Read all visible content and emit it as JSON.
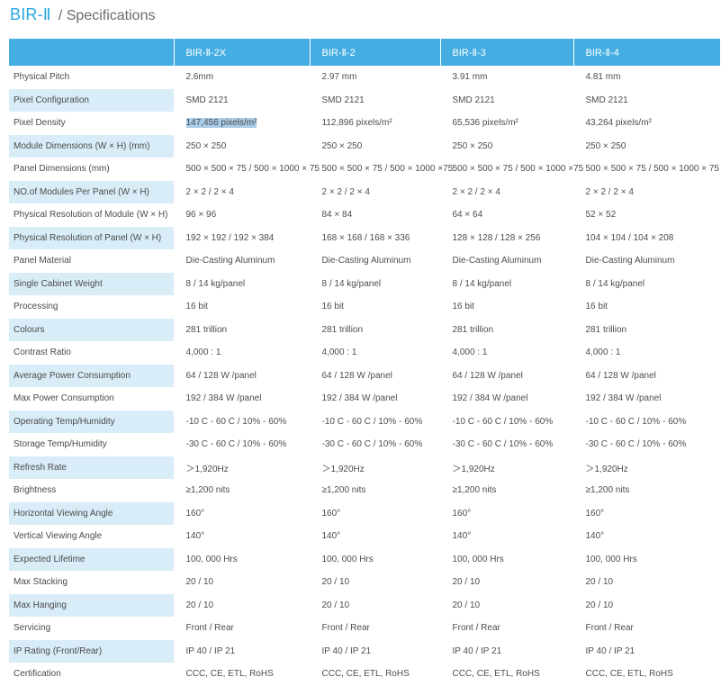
{
  "page": {
    "brand": "BIR-Ⅱ",
    "subtitle": "/ Specifications"
  },
  "colors": {
    "accent": "#29a7df",
    "header_bg": "#44aee2",
    "shaded_label_bg": "#d9edf8"
  },
  "table": {
    "headers": [
      "",
      "BIR-Ⅱ-2X",
      "BIR-Ⅱ-2",
      "BIR-Ⅱ-3",
      "BIR-Ⅱ-4"
    ],
    "rows": [
      {
        "label": "Physical Pitch",
        "values": [
          "2.6mm",
          "2.97  mm",
          "3.91 mm",
          "4.81 mm"
        ]
      },
      {
        "label": "Pixel Configuration",
        "values": [
          "SMD 2121",
          "SMD 2121",
          "SMD 2121",
          "SMD 2121"
        ]
      },
      {
        "label": "Pixel Density",
        "values": [
          "147,456 pixels/m²",
          "112,896  pixels/m²",
          "65,536 pixels/m²",
          "43,264 pixels/m²"
        ]
      },
      {
        "label": "Module Dimensions (W × H) (mm)",
        "values": [
          "250 × 250",
          "250 × 250",
          "250 × 250",
          "250 × 250"
        ]
      },
      {
        "label": "Panel Dimensions (mm)",
        "values": [
          "500 × 500 × 75 / 500 × 1000 × 75",
          "500 × 500 × 75 / 500 × 1000 ×75",
          "500 × 500 × 75 / 500 × 1000 ×75",
          "500 × 500 × 75 / 500 × 1000 × 75"
        ]
      },
      {
        "label": "NO.of Modules Per Panel (W × H)",
        "values": [
          "2 × 2 / 2 × 4",
          "2 × 2 / 2 × 4",
          "2 × 2 / 2 × 4",
          "2 × 2 / 2 × 4"
        ]
      },
      {
        "label": "Physical Resolution of Module (W × H)",
        "values": [
          "96 ×  96",
          "84 ×  84",
          "64 ×  64",
          "52 ×  52"
        ]
      },
      {
        "label": "Physical Resolution of Panel (W × H)",
        "values": [
          "192 × 192 / 192 × 384",
          "168 × 168 / 168 × 336",
          " 128 × 128 / 128 × 256",
          "104 × 104 / 104 × 208"
        ]
      },
      {
        "label": "Panel Material",
        "values": [
          "Die-Casting Aluminum",
          "Die-Casting Aluminum",
          "Die-Casting Aluminum",
          "Die-Casting Aluminum"
        ]
      },
      {
        "label": "Single Cabinet Weight",
        "values": [
          "8 / 14 kg/panel",
          "8  / 14 kg/panel",
          "8 / 14 kg/panel",
          "8 / 14 kg/panel"
        ]
      },
      {
        "label": "Processing",
        "values": [
          "16 bit",
          "16 bit",
          "16 bit",
          "16 bit"
        ]
      },
      {
        "label": "Colours",
        "values": [
          "281 trillion",
          "281 trillion",
          "281 trillion",
          "281 trillion"
        ]
      },
      {
        "label": "Contrast Ratio",
        "values": [
          "4,000 : 1",
          "4,000 : 1",
          "4,000 : 1",
          "4,000 : 1"
        ]
      },
      {
        "label": "Average Power Consumption",
        "values": [
          "64 / 128  W /panel",
          "64 / 128  W /panel",
          "64 / 128 W /panel",
          "64 / 128  W /panel"
        ]
      },
      {
        "label": "Max Power Consumption",
        "values": [
          "192 / 384  W /panel",
          "192 / 384  W /panel",
          "192 / 384  W /panel",
          "192 / 384 W /panel"
        ]
      },
      {
        "label": "Operating Temp/Humidity",
        "values": [
          "-10 C - 60 C / 10% - 60%",
          "-10 C - 60 C / 10% - 60%",
          "-10 C - 60 C / 10% - 60%",
          "-10 C - 60 C / 10% - 60%"
        ]
      },
      {
        "label": "Storage Temp/Humidity",
        "values": [
          "-30 C - 60 C / 10% - 60%",
          "-30 C - 60 C / 10% - 60%",
          "-30 C - 60 C / 10% - 60%",
          "-30 C - 60 C / 10% - 60%"
        ]
      },
      {
        "label": "Refresh Rate",
        "values": [
          "＞1,920Hz",
          "＞1,920Hz",
          "＞1,920Hz",
          "＞1,920Hz"
        ]
      },
      {
        "label": "Brightness",
        "values": [
          "≥1,200 nits",
          "≥1,200 nits",
          "≥1,200 nits",
          "≥1,200 nits"
        ]
      },
      {
        "label": "Horizontal Viewing Angle",
        "values": [
          "160°",
          "160°",
          "160°",
          "160°"
        ]
      },
      {
        "label": "Vertical Viewing Angle",
        "values": [
          "140°",
          "140°",
          "140°",
          "140°"
        ]
      },
      {
        "label": "Expected Lifetime",
        "values": [
          "100, 000 Hrs",
          "100, 000 Hrs",
          "100, 000 Hrs",
          "100, 000 Hrs"
        ]
      },
      {
        "label": "Max Stacking",
        "values": [
          "20 / 10",
          "20 / 10",
          "20 / 10",
          "20 / 10"
        ]
      },
      {
        "label": "Max Hanging",
        "values": [
          "20 / 10",
          "20 / 10",
          "20 / 10",
          "20 / 10"
        ]
      },
      {
        "label": "Servicing",
        "values": [
          "Front / Rear",
          "Front / Rear",
          "Front / Rear",
          "Front / Rear"
        ]
      },
      {
        "label": "IP Rating (Front/Rear)",
        "values": [
          "IP 40 / IP 21",
          "IP 40 / IP 21",
          "IP 40 / IP 21",
          "IP 40 / IP 21"
        ]
      },
      {
        "label": "Certification",
        "values": [
          "CCC, CE, ETL, RoHS",
          "CCC, CE, ETL, RoHS",
          "CCC, CE, ETL, RoHS",
          "CCC, CE, ETL, RoHS"
        ]
      }
    ]
  }
}
